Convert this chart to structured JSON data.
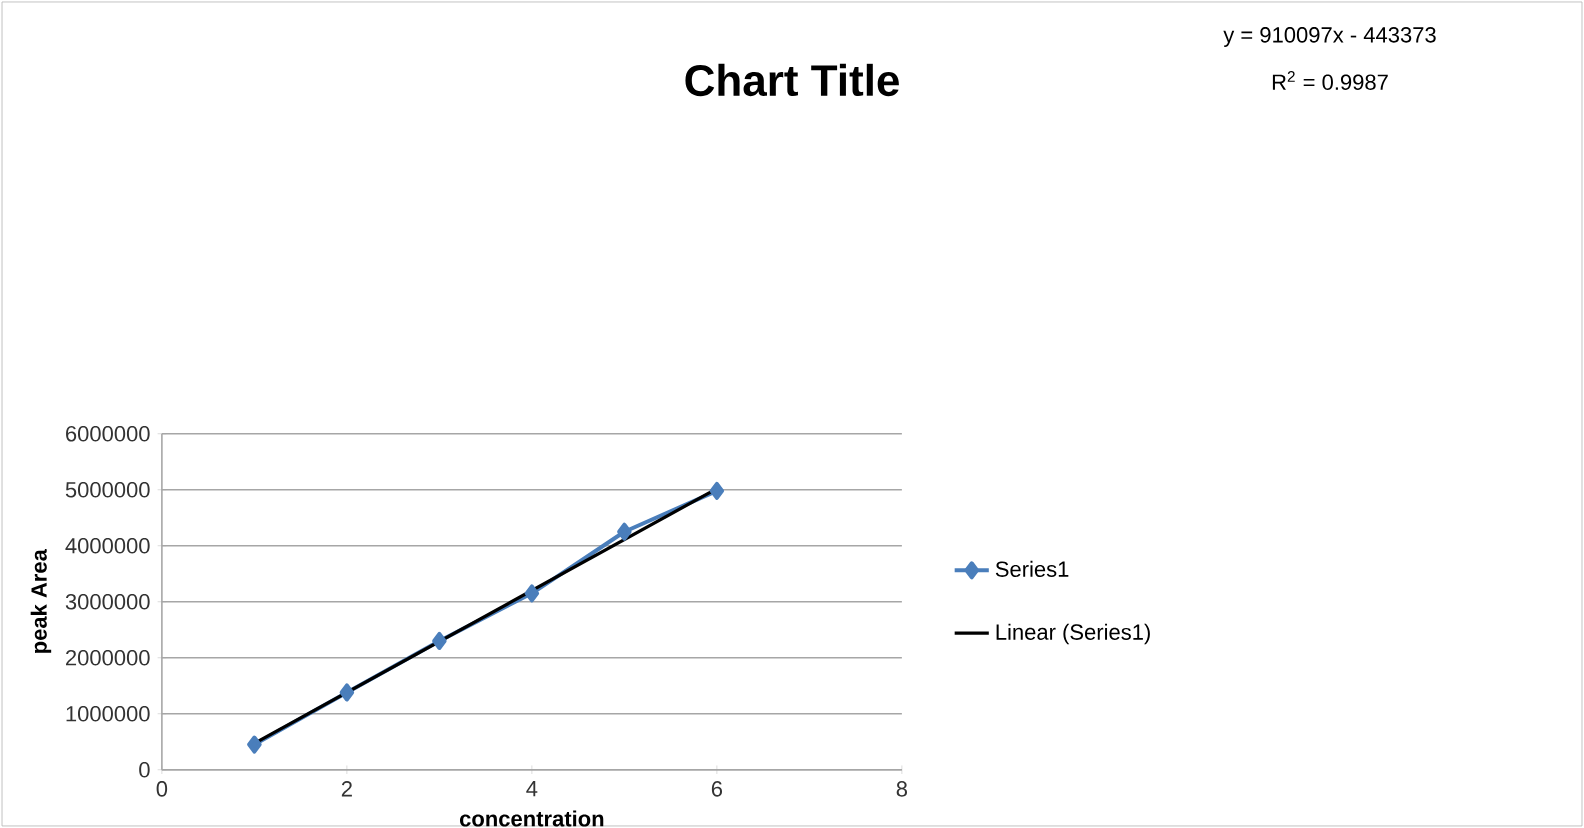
{
  "chart_data": {
    "type": "line",
    "title": "Chart Title",
    "xlabel": "concentration",
    "ylabel": "peak Area",
    "annotations": [
      "y = 910097x - 443373",
      "R$^{2}$ = 0.9987"
    ],
    "xlim": [
      0,
      8
    ],
    "xticks": [
      0,
      2,
      4,
      6,
      8
    ],
    "ylim": [
      0,
      6000000
    ],
    "yticks": [
      0,
      1000000,
      2000000,
      3000000,
      4000000,
      5000000,
      6000000
    ],
    "grid": "y",
    "legend": "right",
    "series": [
      {
        "name": "Series1",
        "color": "#4a7ebb",
        "marker": "diamond",
        "x": [
          1,
          2,
          3,
          4,
          5,
          6
        ],
        "values": [
          450000,
          1380000,
          2300000,
          3150000,
          4250000,
          4980000
        ]
      },
      {
        "name": "Linear (Series1)",
        "color": "#000000",
        "marker": "none",
        "x": [
          1,
          6
        ],
        "values": [
          470000,
          5020000
        ]
      }
    ]
  }
}
